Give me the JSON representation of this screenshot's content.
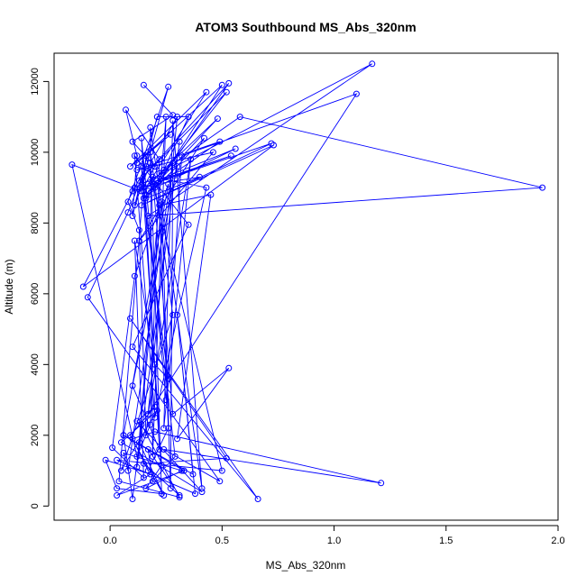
{
  "chart_data": {
    "type": "line",
    "title": "ATOM3 Southbound MS_Abs_320nm",
    "xlabel": "MS_Abs_320nm",
    "ylabel": "Altitude (m)",
    "xlim": [
      -0.25,
      2.0
    ],
    "ylim": [
      -400,
      12800
    ],
    "x_ticks": [
      0.0,
      0.5,
      1.0,
      1.5,
      2.0
    ],
    "x_tick_labels": [
      "0.0",
      "0.5",
      "1.0",
      "1.5",
      "2.0"
    ],
    "y_ticks": [
      0,
      2000,
      4000,
      6000,
      8000,
      10000,
      12000
    ],
    "y_tick_labels": [
      "0",
      "2000",
      "4000",
      "6000",
      "8000",
      "10000",
      "12000"
    ],
    "grid": false,
    "color": "#0000ff",
    "markers": "open-circle",
    "series": [
      {
        "points": [
          [
            0.15,
            11900
          ],
          [
            0.28,
            11050
          ],
          [
            0.1,
            10300
          ],
          [
            0.2,
            9600
          ],
          [
            0.14,
            8900
          ],
          [
            -0.17,
            9650
          ],
          [
            0.12,
            1400
          ],
          [
            0.18,
            2300
          ],
          [
            0.22,
            9800
          ],
          [
            0.07,
            11200
          ],
          [
            0.12,
            9900
          ],
          [
            0.1,
            8200
          ],
          [
            0.26,
            11850
          ],
          [
            0.08,
            8600
          ],
          [
            0.13,
            7800
          ],
          [
            0.16,
            2000
          ],
          [
            0.3,
            11000
          ],
          [
            0.18,
            9700
          ],
          [
            0.11,
            8500
          ],
          [
            0.21,
            11000
          ],
          [
            0.35,
            11000
          ],
          [
            0.24,
            9500
          ],
          [
            0.15,
            8900
          ],
          [
            0.43,
            11700
          ],
          [
            0.09,
            9600
          ],
          [
            0.27,
            10500
          ],
          [
            0.12,
            9700
          ],
          [
            0.5,
            11900
          ],
          [
            0.2,
            9000
          ],
          [
            0.53,
            11950
          ],
          [
            0.13,
            9200
          ],
          [
            0.52,
            11700
          ],
          [
            0.16,
            8800
          ],
          [
            0.48,
            10950
          ],
          [
            0.22,
            9400
          ],
          [
            0.58,
            11000
          ],
          [
            1.93,
            9000
          ],
          [
            0.17,
            8200
          ],
          [
            1.17,
            12500
          ],
          [
            0.11,
            9000
          ],
          [
            0.4,
            9300
          ],
          [
            0.16,
            8700
          ],
          [
            0.42,
            10400
          ],
          [
            0.13,
            7500
          ],
          [
            0.46,
            10000
          ],
          [
            0.12,
            9500
          ],
          [
            0.49,
            10300
          ],
          [
            0.17,
            8900
          ],
          [
            0.56,
            10100
          ],
          [
            0.17,
            9100
          ],
          [
            0.54,
            9900
          ],
          [
            0.1,
            8900
          ],
          [
            0.72,
            10250
          ],
          [
            0.14,
            8500
          ],
          [
            0.73,
            10200
          ],
          [
            -0.12,
            6200
          ],
          [
            0.16,
            9600
          ],
          [
            0.08,
            8300
          ],
          [
            -0.1,
            5900
          ],
          [
            0.49,
            700
          ],
          [
            0.24,
            1600
          ],
          [
            1.21,
            650
          ],
          [
            0.2,
            2100
          ],
          [
            0.1,
            1900
          ],
          [
            0.17,
            1000
          ],
          [
            0.26,
            2200
          ],
          [
            0.22,
            8500
          ],
          [
            0.45,
            8800
          ],
          [
            0.3,
            1900
          ],
          [
            0.53,
            3900
          ],
          [
            0.28,
            2600
          ],
          [
            0.19,
            9300
          ],
          [
            0.43,
            9000
          ],
          [
            0.2,
            2500
          ],
          [
            0.11,
            9900
          ],
          [
            0.35,
            7950
          ],
          [
            0.1,
            4500
          ],
          [
            0.66,
            200
          ],
          [
            0.09,
            5300
          ],
          [
            0.52,
            1350
          ],
          [
            0.15,
            1200
          ],
          [
            0.31,
            300
          ],
          [
            0.17,
            1600
          ],
          [
            0.19,
            700
          ],
          [
            0.29,
            1400
          ],
          [
            0.14,
            9600
          ],
          [
            0.23,
            1150
          ],
          [
            0.16,
            500
          ],
          [
            0.32,
            1000
          ],
          [
            0.06,
            1500
          ],
          [
            0.08,
            1000
          ],
          [
            0.28,
            9700
          ],
          [
            0.27,
            500
          ],
          [
            0.23,
            8600
          ],
          [
            0.13,
            1800
          ],
          [
            0.24,
            300
          ],
          [
            0.09,
            2000
          ],
          [
            0.2,
            2800
          ],
          [
            0.12,
            2400
          ],
          [
            0.41,
            400
          ],
          [
            0.05,
            1800
          ],
          [
            0.21,
            2700
          ],
          [
            0.05,
            1000
          ],
          [
            0.28,
            5400
          ],
          [
            0.18,
            10000
          ],
          [
            0.23,
            350
          ],
          [
            0.03,
            500
          ],
          [
            -0.02,
            1300
          ],
          [
            0.18,
            900
          ],
          [
            0.03,
            300
          ],
          [
            0.33,
            1000
          ],
          [
            0.06,
            2000
          ],
          [
            0.37,
            900
          ],
          [
            0.3,
            5400
          ],
          [
            0.38,
            350
          ],
          [
            0.03,
            1300
          ],
          [
            0.5,
            1000
          ],
          [
            0.16,
            9900
          ],
          [
            0.04,
            700
          ],
          [
            0.31,
            250
          ],
          [
            0.14,
            2300
          ],
          [
            0.1,
            200
          ],
          [
            0.06,
            2000
          ],
          [
            0.26,
            9100
          ],
          [
            0.11,
            6500
          ],
          [
            0.01,
            1650
          ],
          [
            0.15,
            800
          ],
          [
            0.11,
            7500
          ],
          [
            0.2,
            4000
          ],
          [
            0.26,
            3600
          ],
          [
            0.15,
            8700
          ],
          [
            0.3,
            9600
          ],
          [
            0.1,
            3400
          ],
          [
            0.22,
            1600
          ],
          [
            0.14,
            10400
          ],
          [
            0.25,
            3000
          ],
          [
            0.32,
            9900
          ],
          [
            1.1,
            11650
          ],
          [
            0.17,
            2600
          ],
          [
            0.36,
            9800
          ],
          [
            0.24,
            2200
          ],
          [
            0.28,
            10900
          ],
          [
            0.41,
            500
          ],
          [
            0.18,
            10700
          ],
          [
            0.19,
            1400
          ],
          [
            0.25,
            11000
          ],
          [
            0.12,
            1100
          ],
          [
            0.31,
            10300
          ]
        ]
      }
    ]
  }
}
